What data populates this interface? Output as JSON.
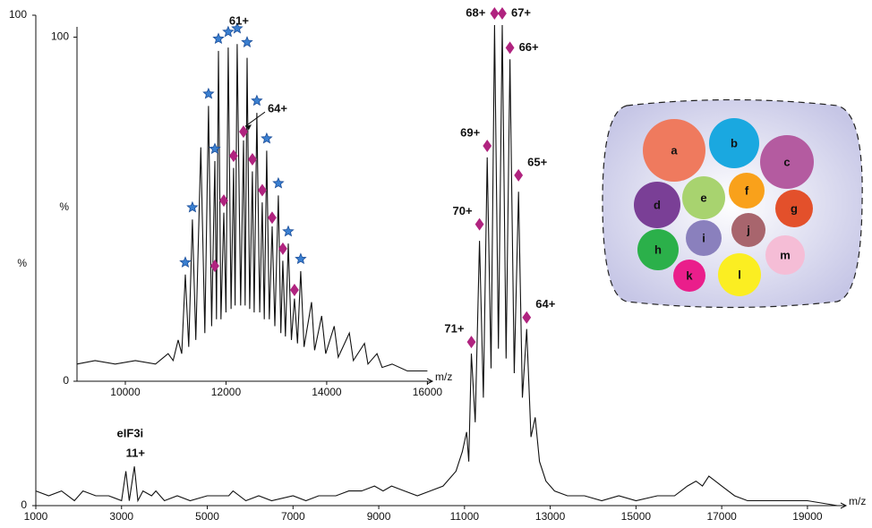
{
  "chart_data": [
    {
      "type": "line",
      "x": [
        1000,
        1300,
        1600,
        1900,
        2100,
        2400,
        2700,
        3000,
        3100,
        3180,
        3300,
        3380,
        3500,
        3700,
        3800,
        4000,
        4300,
        4600,
        5000,
        5500,
        5600,
        5900,
        6200,
        6500,
        7000,
        7300,
        7600,
        8000,
        8300,
        8600,
        8900,
        9100,
        9300,
        9600,
        9900,
        10200,
        10500,
        10800,
        10950,
        11050,
        11100,
        11160,
        11250,
        11350,
        11440,
        11530,
        11620,
        11700,
        11790,
        11880,
        11970,
        12060,
        12160,
        12260,
        12350,
        12450,
        12550,
        12650,
        12750,
        12900,
        13100,
        13400,
        13800,
        14200,
        14600,
        15000,
        15500,
        15900,
        16200,
        16400,
        16550,
        16700,
        16850,
        17000,
        17300,
        17600,
        18000,
        18500,
        19000,
        19700
      ],
      "series": [
        {
          "color": "#111111",
          "values": [
            3,
            2,
            3,
            1,
            3,
            2,
            2,
            1,
            7,
            1,
            8,
            1,
            3,
            2,
            3,
            1,
            2,
            1,
            2,
            2,
            3,
            1,
            2,
            1,
            2,
            1,
            2,
            2,
            3,
            3,
            4,
            3,
            4,
            3,
            2,
            3,
            4,
            7,
            11,
            15,
            9,
            31,
            17,
            54,
            22,
            71,
            28,
            98,
            32,
            98,
            30,
            91,
            27,
            64,
            22,
            36,
            14,
            18,
            9,
            5,
            3,
            2,
            2,
            1,
            2,
            1,
            2,
            2,
            4,
            5,
            4,
            6,
            5,
            4,
            2,
            1,
            1,
            1,
            1,
            0
          ]
        }
      ],
      "xlim": [
        1000,
        19900
      ],
      "xticks": [
        1000,
        3000,
        5000,
        7000,
        9000,
        11000,
        13000,
        15000,
        17000,
        19000
      ],
      "ylim": [
        0,
        100
      ],
      "yticks": [
        0,
        100
      ],
      "ylabel": "%",
      "xlabel": "m/z",
      "markers": [
        {
          "shape": "diamond",
          "color": "#b0237f",
          "labels": [
            "71+",
            "70+",
            "69+",
            "68+",
            "67+",
            "66+",
            "65+",
            "64+"
          ],
          "x": [
            11160,
            11350,
            11530,
            11700,
            11880,
            12060,
            12260,
            12450
          ],
          "values": [
            33,
            57,
            73,
            100,
            100,
            93,
            67,
            38
          ]
        }
      ],
      "annotations": [
        {
          "lines": [
            "eIF3i",
            "11+"
          ],
          "x": 3200,
          "y": 8
        }
      ]
    },
    {
      "type": "line",
      "x": [
        9040,
        9400,
        9800,
        10200,
        10600,
        10850,
        10950,
        11050,
        11120,
        11191,
        11260,
        11333,
        11400,
        11500,
        11580,
        11653,
        11715,
        11778,
        11810,
        11849,
        11900,
        11956,
        12000,
        12044,
        12100,
        12151,
        12180,
        12222,
        12290,
        12347,
        12380,
        12418,
        12470,
        12524,
        12560,
        12613,
        12670,
        12720,
        12760,
        12809,
        12860,
        12916,
        12970,
        13040,
        13090,
        13129,
        13180,
        13236,
        13300,
        13360,
        13420,
        13484,
        13550,
        13700,
        13760,
        13900,
        13980,
        14150,
        14230,
        14450,
        14530,
        14750,
        14820,
        15000,
        15100,
        15300,
        15600,
        16000
      ],
      "series": [
        {
          "color": "#111111",
          "values": [
            5,
            6,
            5,
            6,
            5,
            8,
            6,
            12,
            8,
            31,
            10,
            47,
            12,
            68,
            14,
            80,
            16,
            64,
            18,
            96,
            18,
            49,
            20,
            97,
            21,
            62,
            22,
            98,
            22,
            70,
            22,
            94,
            21,
            61,
            20,
            78,
            20,
            52,
            18,
            67,
            18,
            45,
            16,
            54,
            14,
            35,
            13,
            40,
            12,
            24,
            11,
            32,
            10,
            23,
            9,
            19,
            8,
            16,
            7,
            14,
            6,
            11,
            5,
            8,
            4,
            5,
            3,
            3
          ]
        }
      ],
      "xlim": [
        9040,
        16100
      ],
      "xticks": [
        10000,
        12000,
        14000,
        16000
      ],
      "ylim": [
        0,
        103
      ],
      "yticks": [
        0,
        100
      ],
      "ylabel": "%",
      "xlabel": "m/z",
      "markers": [
        {
          "shape": "star",
          "color": "#3a7fd0",
          "x": [
            11191,
            11333,
            11653,
            11778,
            11849,
            12044,
            12222,
            12418,
            12613,
            12809,
            13040,
            13236,
            13484
          ],
          "values": [
            34,
            50,
            83,
            67,
            99,
            101,
            102,
            98,
            81,
            70,
            57,
            43,
            35
          ]
        },
        {
          "shape": "diamond",
          "color": "#b0237f",
          "x": [
            11778,
            11956,
            12151,
            12347,
            12524,
            12720,
            12916,
            13129,
            13360
          ],
          "values": [
            33,
            52,
            65,
            72,
            64,
            55,
            47,
            38,
            26
          ]
        }
      ],
      "annotations": [
        {
          "text": "61+",
          "x": 12222,
          "y": 102
        },
        {
          "text": "64+",
          "x": 12347,
          "y": 72
        }
      ]
    }
  ],
  "diagram": {
    "subunits": [
      {
        "label": "a",
        "color": "#ef7a5e"
      },
      {
        "label": "b",
        "color": "#1aa8e0"
      },
      {
        "label": "c",
        "color": "#b45ba0"
      },
      {
        "label": "d",
        "color": "#7a3f96"
      },
      {
        "label": "e",
        "color": "#a8d36f"
      },
      {
        "label": "f",
        "color": "#f9a11b"
      },
      {
        "label": "g",
        "color": "#e3502b"
      },
      {
        "label": "h",
        "color": "#2bb04a"
      },
      {
        "label": "i",
        "color": "#8a80bd"
      },
      {
        "label": "j",
        "color": "#a8656d"
      },
      {
        "label": "k",
        "color": "#ea1e8b"
      },
      {
        "label": "l",
        "color": "#fbee22"
      },
      {
        "label": "m",
        "color": "#f5bdd6"
      }
    ]
  }
}
